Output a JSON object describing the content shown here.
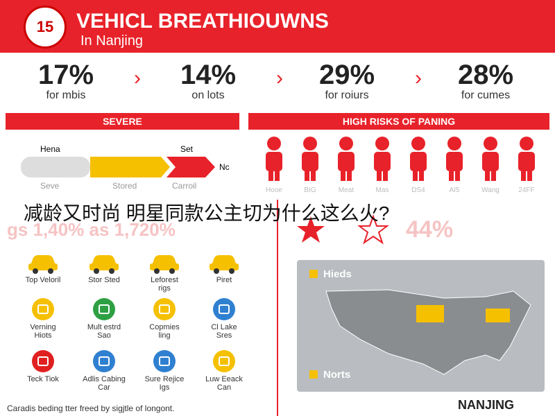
{
  "header": {
    "badge": "15",
    "title": "VEHICL BREATHIOUWNS",
    "subtitle": "In Nanjing"
  },
  "stats": [
    {
      "value": "17%",
      "label": "for mbis"
    },
    {
      "value": "14%",
      "label": "on lots"
    },
    {
      "value": "29%",
      "label": "for roiurs"
    },
    {
      "value": "28%",
      "label": "for cumes"
    }
  ],
  "severe": {
    "title": "SEVERE",
    "top_labels": [
      "Hena",
      "Set"
    ],
    "end_label": "Nc",
    "bottom_labels": [
      "Seve",
      "Stored",
      "Carroil"
    ]
  },
  "risks": {
    "title": "HIGH RISKS OF PANING",
    "labels": [
      "Hooe",
      "BIG",
      "Meat",
      "Mas",
      "DS4",
      "AI5",
      "Wang",
      "24FF"
    ]
  },
  "overlay": "减龄又时尚 明星同款公主切为什么这么火?",
  "faded": {
    "left": "gs 1,40% as 1,720%",
    "right": "44%"
  },
  "icons": [
    {
      "label": "Top Veloril",
      "kind": "car",
      "color": "#f5c000"
    },
    {
      "label": "Stor Sted",
      "kind": "car",
      "color": "#f5c000"
    },
    {
      "label": "Leforest\nrigs",
      "kind": "car",
      "color": "#f5c000"
    },
    {
      "label": "Piret",
      "kind": "car",
      "color": "#f5c000"
    },
    {
      "label": "Verning\nHiots",
      "kind": "circle",
      "color": "#f5c000"
    },
    {
      "label": "Mult estrd\nSao",
      "kind": "circle",
      "color": "#2ea043"
    },
    {
      "label": "Copmies\nling",
      "kind": "circle",
      "color": "#f5c000"
    },
    {
      "label": "Cl Lake\nSres",
      "kind": "circle",
      "color": "#2f80d0"
    },
    {
      "label": "Teck Tiok",
      "kind": "circle",
      "color": "#e02020"
    },
    {
      "label": "Adlis Cabing\nCar",
      "kind": "circle",
      "color": "#2f80d0"
    },
    {
      "label": "Sure Rejice\nIgs",
      "kind": "circle",
      "color": "#2f80d0"
    },
    {
      "label": "Luw Eeack\nCan",
      "kind": "circle",
      "color": "#f5c000"
    }
  ],
  "map": {
    "legend": [
      "Hieds",
      "Norts"
    ]
  },
  "footer": {
    "caption": "Caradis beding tter freed by sigjtle of longont.",
    "city": "NANJING"
  }
}
